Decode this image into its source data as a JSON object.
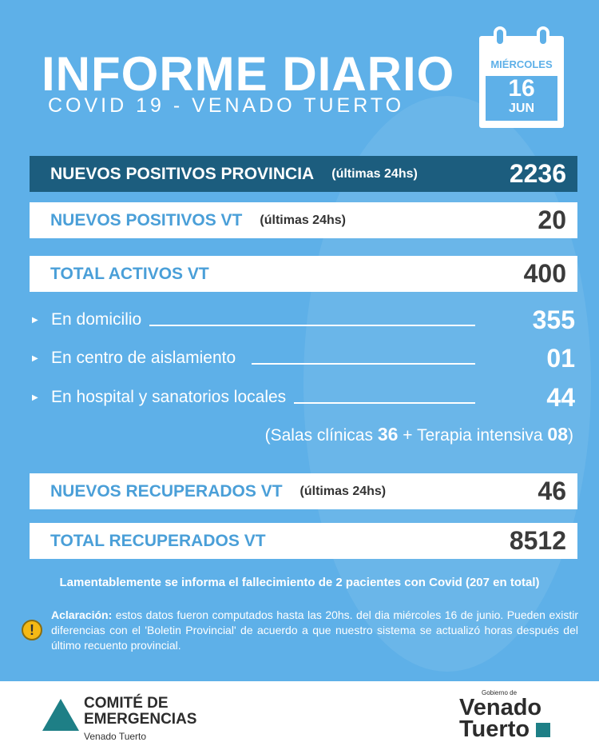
{
  "header": {
    "title": "INFORME DIARIO",
    "subtitle": "COVID 19 - VENADO TUERTO"
  },
  "calendar": {
    "weekday": "MIÉRCOLES",
    "day": "16",
    "month": "JUN"
  },
  "rows": [
    {
      "label": "NUEVOS POSITIVOS PROVINCIA",
      "note": "(últimas 24hs)",
      "value": "2236"
    },
    {
      "label": "NUEVOS POSITIVOS VT",
      "note": "(últimas 24hs)",
      "value": "20"
    },
    {
      "label": "TOTAL ACTIVOS VT",
      "note": "",
      "value": "400"
    }
  ],
  "breakdown": [
    {
      "label": "En domicilio",
      "value": "355"
    },
    {
      "label": "En centro de aislamiento",
      "value": "01"
    },
    {
      "label": "En hospital y sanatorios locales",
      "value": "44"
    }
  ],
  "salas": {
    "open": "(Salas clínicas",
    "salas_value": "36",
    "plus": "+ Terapia intensiva",
    "terapia_value": "08",
    "close": ")"
  },
  "recovered": [
    {
      "label": "NUEVOS RECUPERADOS VT",
      "note": "(últimas 24hs)",
      "value": "46"
    },
    {
      "label": "TOTAL RECUPERADOS VT",
      "note": "",
      "value": "8512"
    }
  ],
  "death_notice": "Lamentablemente se informa el fallecimiento de 2 pacientes con Covid (207 en total)",
  "clarification": {
    "title": "Aclaración:",
    "text": " estos datos fueron computados hasta las 20hs. del dia miércoles 16 de junio. Pueden existir diferencias con el 'Boletin Provincial' de acuerdo a que nuestro sistema se actualizó horas después del último recuento provincial."
  },
  "footer": {
    "committee_line1": "COMITÉ DE",
    "committee_line2": "EMERGENCIAS",
    "committee_sub": "Venado Tuerto",
    "gov_small": "Gobierno de",
    "gov_line1": "Venado",
    "gov_line2": "Tuerto"
  },
  "colors": {
    "background": "#5eb0e8",
    "dark_bar": "#1c5d7e",
    "label_blue": "#4a9fd8",
    "warning": "#f5b915",
    "logo_teal": "#1e7f86"
  }
}
